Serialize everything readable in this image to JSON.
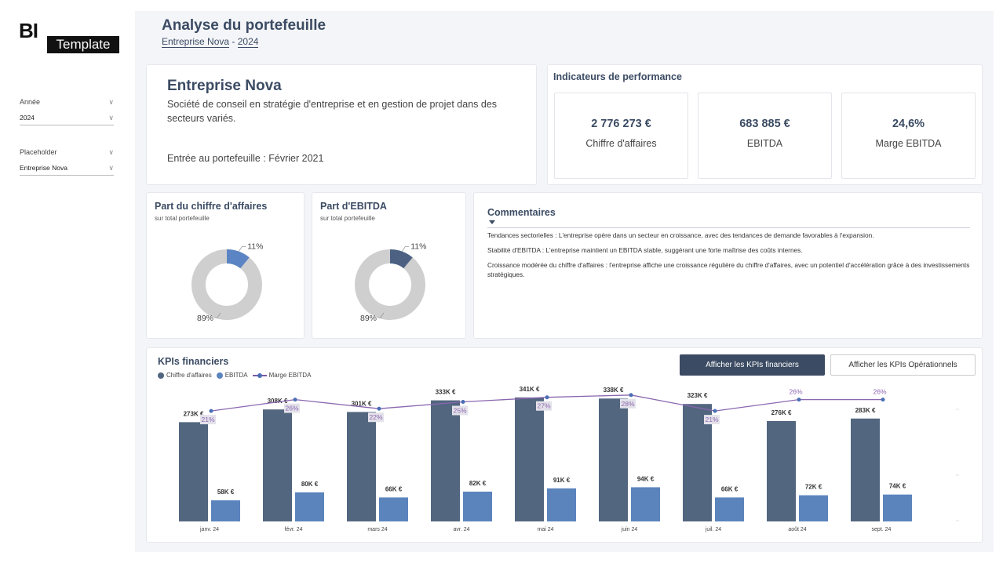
{
  "logo": {
    "bi": "BI",
    "template": "Template"
  },
  "filters": [
    {
      "label": "Année",
      "value": "2024"
    },
    {
      "label": "Placeholder",
      "value": "Entreprise Nova"
    }
  ],
  "header": {
    "title": "Analyse du portefeuille",
    "company": "Entreprise Nova",
    "separator": " - ",
    "year": "2024"
  },
  "company": {
    "name": "Entreprise Nova",
    "description": "Société de conseil en stratégie d'entreprise et en gestion de projet dans des secteurs variés.",
    "entry": "Entrée au portefeuille : Février 2021"
  },
  "kpi": {
    "title": "Indicateurs de performance",
    "items": [
      {
        "value": "2 776 273 €",
        "label": "Chiffre d'affaires"
      },
      {
        "value": "683 885 €",
        "label": "EBITDA"
      },
      {
        "value": "24,6%",
        "label": "Marge EBITDA"
      }
    ]
  },
  "donuts": [
    {
      "title": "Part du chiffre d'affaires",
      "subtitle": "sur total portefeuille",
      "share": 11,
      "rest": 89,
      "share_label": "11%",
      "rest_label": "89%",
      "color": "#5b84c4"
    },
    {
      "title": "Part d'EBITDA",
      "subtitle": "sur total portefeuille",
      "share": 11,
      "rest": 89,
      "share_label": "11%",
      "rest_label": "89%",
      "color": "#4d6183"
    }
  ],
  "comments": {
    "title": "Commentaires",
    "paragraphs": [
      "Tendances sectorielles : L'entreprise opère dans un secteur en croissance, avec des tendances de demande favorables à l'expansion.",
      "Stabilité d'EBITDA : L'entreprise maintient un EBITDA stable, suggérant une forte maîtrise des coûts internes.",
      "Croissance modérée du chiffre d'affaires : l'entreprise affiche une croissance régulière du chiffre d'affaires, avec un potentiel d'accélération grâce à des investissements stratégiques."
    ]
  },
  "financial": {
    "title": "KPIs financiers",
    "legend": [
      "Chiffre d'affaires",
      "EBITDA",
      "Marge EBITDA"
    ],
    "btn_fin": "Afficher les KPIs financiers",
    "btn_ops": "Afficher les KPIs Opérationnels"
  },
  "chart_data": {
    "type": "bar",
    "title": "KPIs financiers",
    "categories": [
      "janv. 24",
      "févr. 24",
      "mars 24",
      "avr. 24",
      "mai 24",
      "juin 24",
      "juil. 24",
      "août 24",
      "sept. 24"
    ],
    "series": [
      {
        "name": "Chiffre d'affaires",
        "type": "bar",
        "color": "#52667f",
        "values": [
          273,
          308,
          301,
          333,
          341,
          338,
          323,
          276,
          283
        ],
        "labels": [
          "273K €",
          "308K €",
          "301K €",
          "333K €",
          "341K €",
          "338K €",
          "323K €",
          "276K €",
          "283K €"
        ]
      },
      {
        "name": "EBITDA",
        "type": "bar",
        "color": "#5b84bd",
        "values": [
          58,
          80,
          66,
          82,
          91,
          94,
          66,
          72,
          74
        ],
        "labels": [
          "58K €",
          "80K €",
          "66K €",
          "82K €",
          "91K €",
          "94K €",
          "66K €",
          "72K €",
          "74K €"
        ]
      },
      {
        "name": "Marge EBITDA",
        "type": "line",
        "color": "#8a67b0",
        "values": [
          21,
          26,
          22,
          25,
          27,
          28,
          21,
          26,
          26
        ],
        "labels": [
          "21%",
          "26%",
          "22%",
          "25%",
          "27%",
          "28%",
          "21%",
          "26%",
          "26%"
        ]
      }
    ],
    "ylim": [
      0,
      345
    ],
    "line_ylim": [
      0,
      30
    ],
    "xlabel": "",
    "ylabel": ""
  }
}
